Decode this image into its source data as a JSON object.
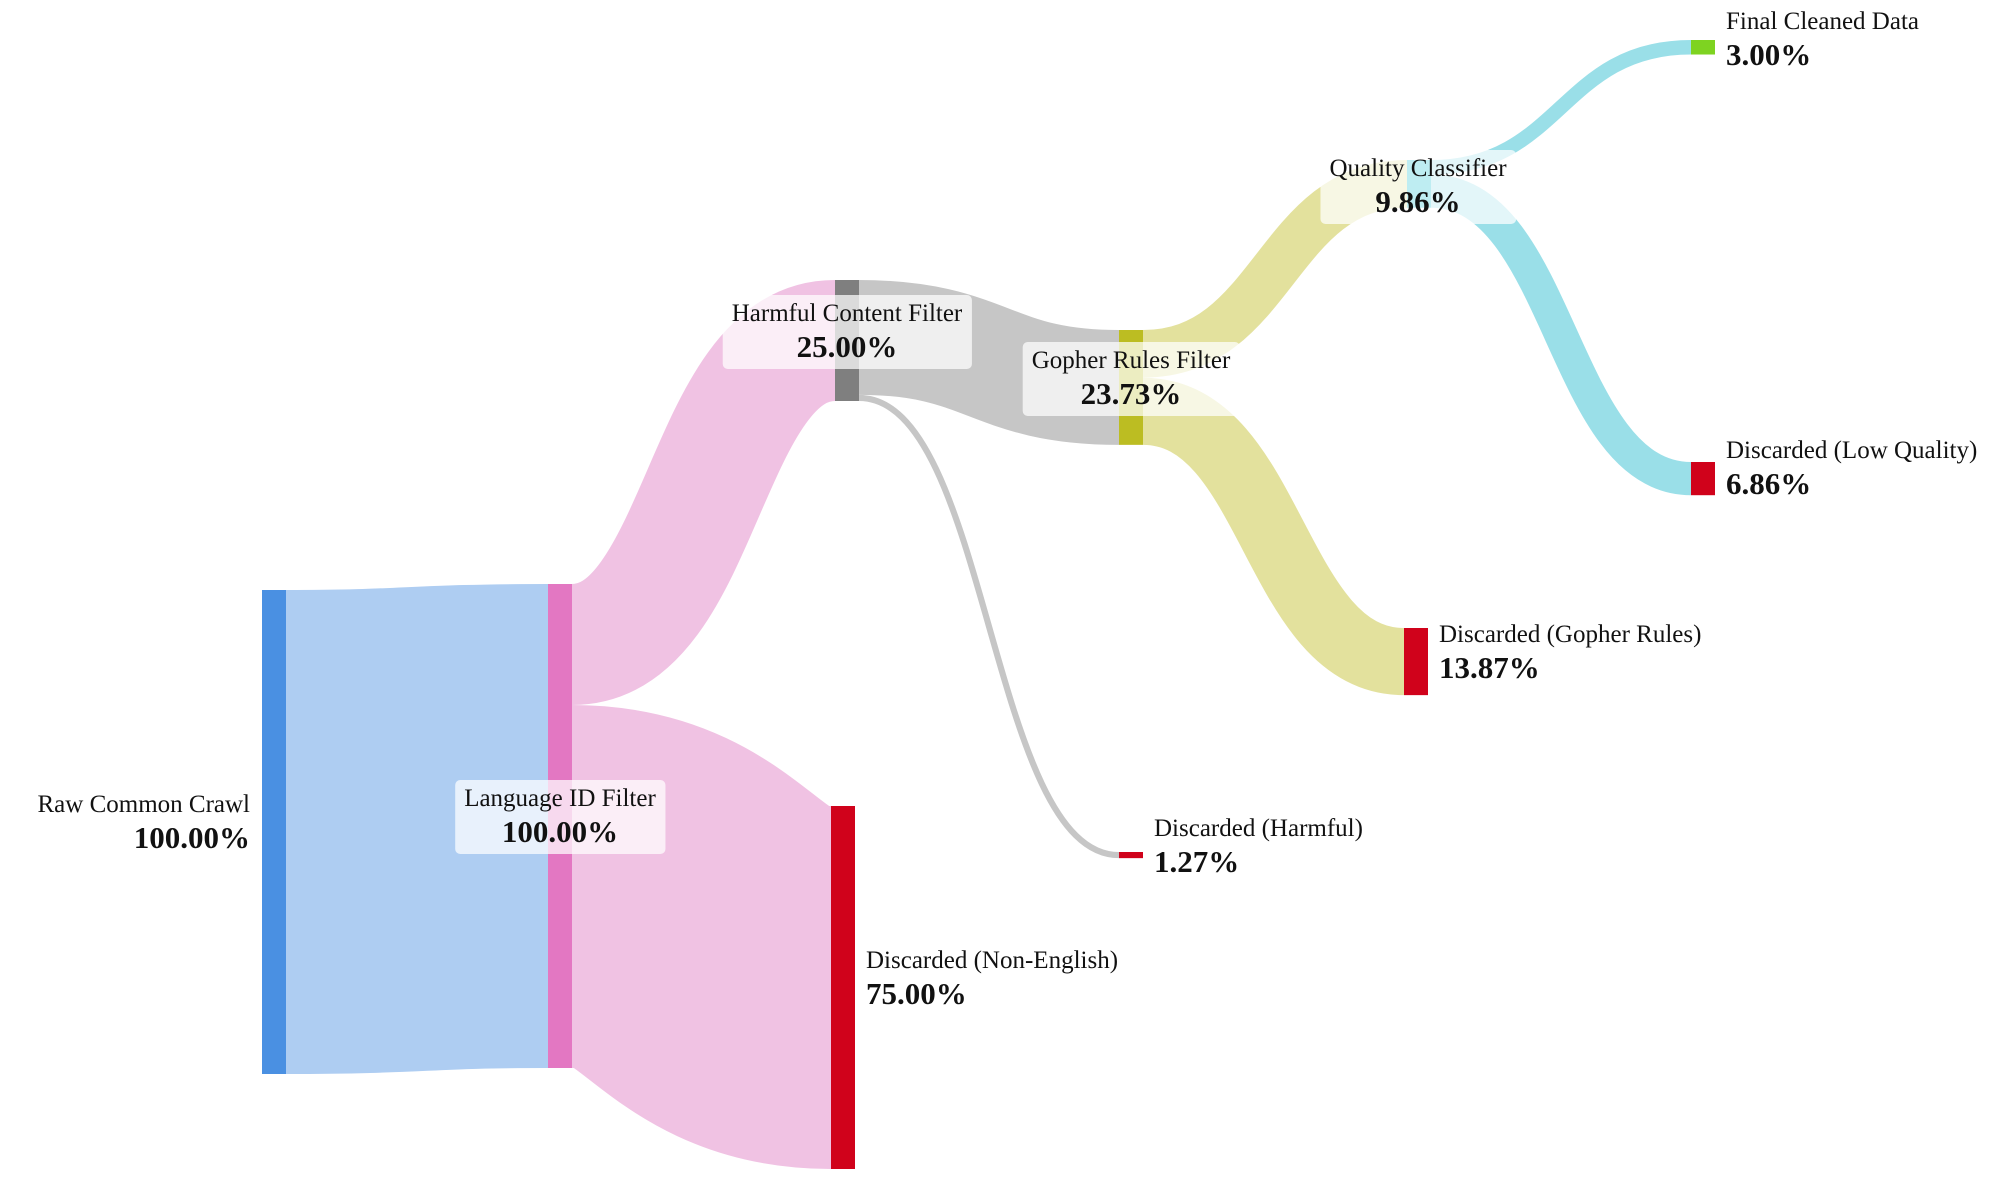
{
  "chart_data": {
    "type": "sankey",
    "unit": "%",
    "nodes": [
      {
        "id": "raw",
        "name": "Raw Common Crawl",
        "value": 100.0,
        "color": "#4a90e2",
        "label_side": "left"
      },
      {
        "id": "lang",
        "name": "Language ID Filter",
        "value": 100.0,
        "color": "#e377c2",
        "label_side": "center"
      },
      {
        "id": "harm",
        "name": "Harmful Content Filter",
        "value": 25.0,
        "color": "#7f7f7f",
        "label_side": "center"
      },
      {
        "id": "nonen",
        "name": "Discarded (Non-English)",
        "value": 75.0,
        "color": "#d0021b",
        "label_side": "right"
      },
      {
        "id": "goph",
        "name": "Gopher Rules Filter",
        "value": 23.73,
        "color": "#bcbd22",
        "label_side": "center"
      },
      {
        "id": "dharm",
        "name": "Discarded (Harmful)",
        "value": 1.27,
        "color": "#d0021b",
        "label_side": "right"
      },
      {
        "id": "qual",
        "name": "Quality Classifier",
        "value": 9.86,
        "color": "#17becf",
        "label_side": "center"
      },
      {
        "id": "dgoph",
        "name": "Discarded (Gopher Rules)",
        "value": 13.87,
        "color": "#d0021b",
        "label_side": "right"
      },
      {
        "id": "final",
        "name": "Final Cleaned Data",
        "value": 3.0,
        "color": "#7ed321",
        "label_side": "right"
      },
      {
        "id": "dlow",
        "name": "Discarded (Low Quality)",
        "value": 6.86,
        "color": "#d0021b",
        "label_side": "right"
      }
    ],
    "links": [
      {
        "source": "raw",
        "target": "lang",
        "value": 100.0,
        "color": "#aecdf2"
      },
      {
        "source": "lang",
        "target": "harm",
        "value": 25.0,
        "color": "#f0c2e3"
      },
      {
        "source": "lang",
        "target": "nonen",
        "value": 75.0,
        "color": "#f0c2e3"
      },
      {
        "source": "harm",
        "target": "goph",
        "value": 23.73,
        "color": "#c6c6c6"
      },
      {
        "source": "harm",
        "target": "dharm",
        "value": 1.27,
        "color": "#c6c6c6"
      },
      {
        "source": "goph",
        "target": "qual",
        "value": 9.86,
        "color": "#e3e19d"
      },
      {
        "source": "goph",
        "target": "dgoph",
        "value": 13.87,
        "color": "#e3e19d"
      },
      {
        "source": "qual",
        "target": "final",
        "value": 3.0,
        "color": "#9adfe8"
      },
      {
        "source": "qual",
        "target": "dlow",
        "value": 6.86,
        "color": "#9adfe8"
      }
    ]
  }
}
